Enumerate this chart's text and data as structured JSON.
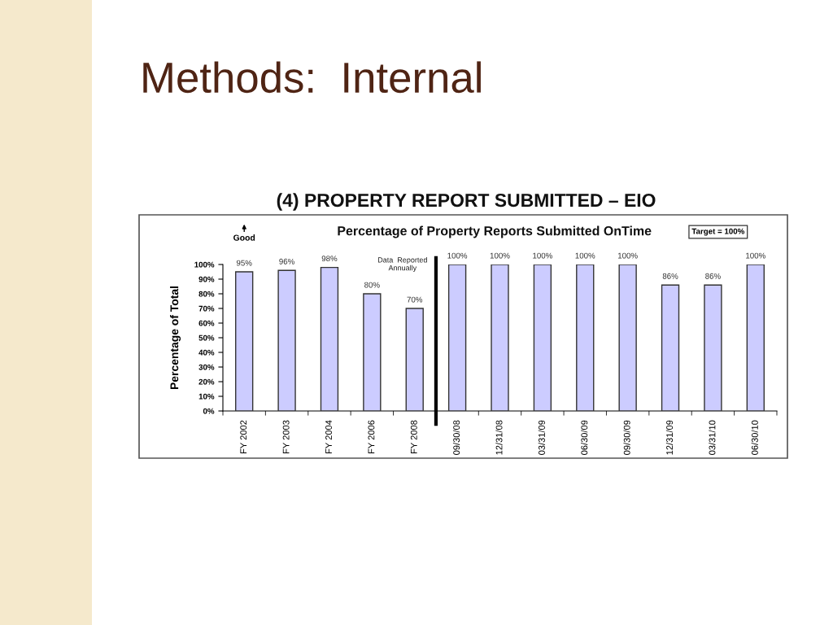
{
  "chart_data": {
    "type": "bar",
    "title": "(4) PROPERTY REPORT SUBMITTED – EIO",
    "subtitle": "Percentage of Property Reports Submitted OnTime",
    "ylabel": "Percentage of Total",
    "annotations": [
      "Methods:  Internal",
      "Good",
      "Target = 100%",
      "Data  Reported\nAnnually"
    ],
    "categories": [
      "FY 2002",
      "FY 2003",
      "FY 2004",
      "FY 2006",
      "FY 2008",
      "09/30/08",
      "12/31/08",
      "03/31/09",
      "06/30/09",
      "09/30/09",
      "12/31/09",
      "03/31/10",
      "06/30/10"
    ],
    "values": [
      95,
      96,
      98,
      80,
      70,
      100,
      100,
      100,
      100,
      100,
      86,
      86,
      100
    ],
    "value_labels": [
      "95%",
      "96%",
      "98%",
      "80%",
      "70%",
      "100%",
      "100%",
      "100%",
      "100%",
      "100%",
      "86%",
      "86%",
      "100%"
    ],
    "color": "#ccccff",
    "ylim": [
      0,
      100
    ],
    "yticks": [
      {
        "value": 0,
        "label": "0%"
      },
      {
        "value": 10,
        "label": "10%"
      },
      {
        "value": 20,
        "label": "20%"
      },
      {
        "value": 30,
        "label": "30%"
      },
      {
        "value": 40,
        "label": "40%"
      },
      {
        "value": 50,
        "label": "50%"
      },
      {
        "value": 60,
        "label": "60%"
      },
      {
        "value": 70,
        "label": "70%"
      },
      {
        "value": 80,
        "label": "80%"
      },
      {
        "value": 90,
        "label": "90%"
      },
      {
        "value": 100,
        "label": "100%"
      }
    ],
    "grid": false,
    "legend": false
  }
}
